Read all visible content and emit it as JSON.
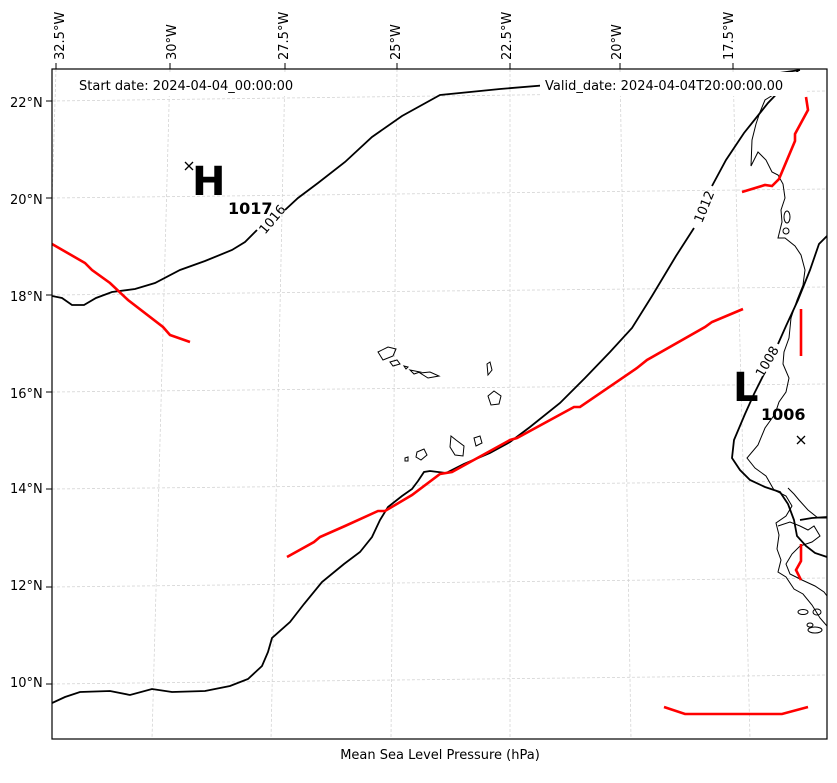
{
  "header": {
    "start_date": "Start date: 2024-04-04_00:00:00",
    "valid_date": "Valid_date: 2024-04-04T20:00:00.00"
  },
  "axes": {
    "lon_ticks": [
      "32.5°W",
      "30°W",
      "27.5°W",
      "25°W",
      "22.5°W",
      "20°W",
      "17.5°W"
    ],
    "lat_ticks": [
      "22°N",
      "20°N",
      "18°N",
      "16°N",
      "14°N",
      "12°N",
      "10°N"
    ]
  },
  "caption": "Mean Sea Level Pressure (hPa)",
  "pressure_centers": [
    {
      "type": "H",
      "value": "1017"
    },
    {
      "type": "L",
      "value": "1006"
    }
  ],
  "isobars": [
    {
      "label": "1016"
    },
    {
      "label": "1012"
    },
    {
      "label": "1008"
    }
  ],
  "colors": {
    "isobar": "#000000",
    "trough": "#ff0000",
    "grid": "#d0d0d0",
    "coast": "#000000"
  }
}
